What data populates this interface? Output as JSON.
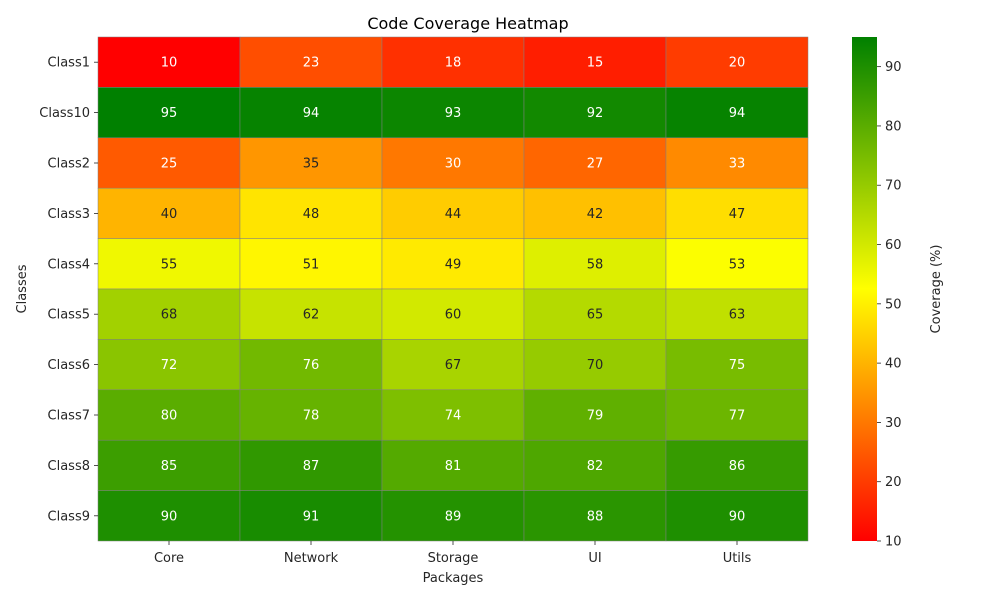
{
  "chart_data": {
    "type": "heatmap",
    "title": "Code Coverage Heatmap",
    "xlabel": "Packages",
    "ylabel": "Classes",
    "x_categories": [
      "Core",
      "Network",
      "Storage",
      "UI",
      "Utils"
    ],
    "y_categories": [
      "Class1",
      "Class10",
      "Class2",
      "Class3",
      "Class4",
      "Class5",
      "Class6",
      "Class7",
      "Class8",
      "Class9"
    ],
    "values": [
      [
        10,
        23,
        18,
        15,
        20
      ],
      [
        95,
        94,
        93,
        92,
        94
      ],
      [
        25,
        35,
        30,
        27,
        33
      ],
      [
        40,
        48,
        44,
        42,
        47
      ],
      [
        55,
        51,
        49,
        58,
        53
      ],
      [
        68,
        62,
        60,
        65,
        63
      ],
      [
        72,
        76,
        67,
        70,
        75
      ],
      [
        80,
        78,
        74,
        79,
        77
      ],
      [
        85,
        87,
        81,
        82,
        86
      ],
      [
        90,
        91,
        89,
        88,
        90
      ]
    ],
    "colorbar": {
      "label": "Coverage (%)",
      "min": 10,
      "max": 95,
      "ticks": [
        10,
        20,
        30,
        40,
        50,
        60,
        70,
        80,
        90
      ],
      "colors": [
        "#ff0000",
        "#ffff00",
        "#008000"
      ]
    },
    "annotations": true,
    "grid": true
  }
}
